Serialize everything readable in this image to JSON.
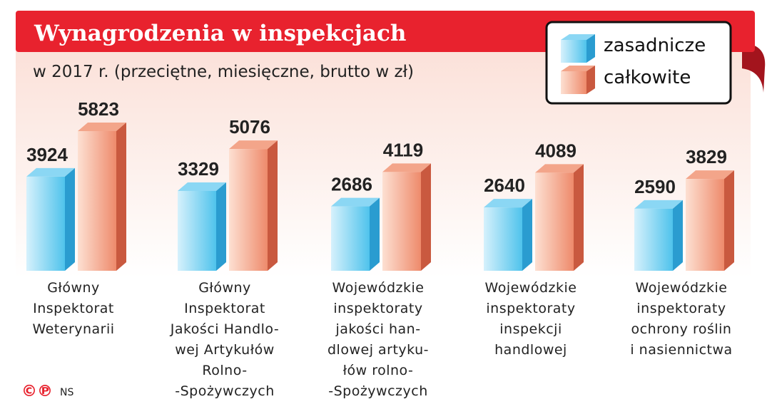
{
  "chart_data": {
    "type": "bar",
    "title": "Wynagrodzenia w inspekcjach",
    "subtitle": "w 2017 r. (przeciętne, miesięczne, brutto w zł)",
    "legend_position": "top-right",
    "ylim": [
      0,
      6000
    ],
    "grid": false,
    "categories": [
      [
        "Główny",
        "Inspektorat",
        "Weterynarii"
      ],
      [
        "Główny",
        "Inspektorat",
        "Jakości Handlo-",
        "wej Artykułów",
        "Rolno-",
        "-Spożywczych"
      ],
      [
        "Wojewódzkie",
        "inspektoraty",
        "jakości han-",
        "dlowej artyku-",
        "łów rolno-",
        "-Spożywczych"
      ],
      [
        "Wojewódzkie",
        "inspektoraty",
        "inspekcji",
        "handlowej"
      ],
      [
        "Wojewódzkie",
        "inspektoraty",
        "ochrony roślin",
        "i nasiennictwa"
      ]
    ],
    "series": [
      {
        "name": "zasadnicze",
        "values": [
          3924,
          3329,
          2686,
          2640,
          2590
        ],
        "labels": [
          "3924",
          "3329",
          "2686",
          "2640",
          "2590"
        ]
      },
      {
        "name": "całkowite",
        "values": [
          5823,
          5076,
          4119,
          4089,
          3829
        ],
        "labels": [
          "5823",
          "5076",
          "4119",
          "4089",
          "3829"
        ]
      }
    ]
  },
  "footer": {
    "copyright_mark": "©℗",
    "source": "NS"
  },
  "colors": {
    "banner": "#e8222e",
    "banner_dark": "#a3141d",
    "blue_front_light": "#d6f1fc",
    "blue_front": "#4fc3ec",
    "blue_top": "#8bd7f4",
    "blue_side": "#2a9cd0",
    "red_front_light": "#fde0d2",
    "red_front": "#ee8a6b",
    "red_top": "#f3a58a",
    "red_side": "#c9593f"
  }
}
